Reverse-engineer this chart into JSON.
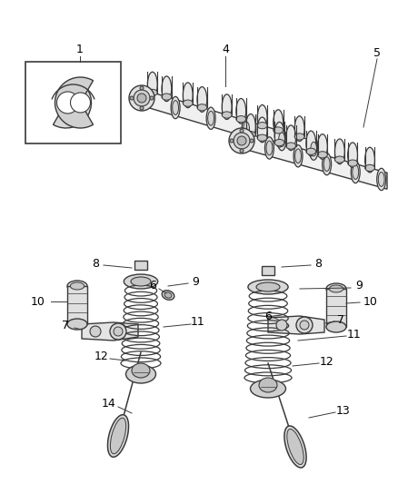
{
  "background_color": "#ffffff",
  "line_color": "#3a3a3a",
  "fig_width": 4.38,
  "fig_height": 5.33,
  "dpi": 100
}
